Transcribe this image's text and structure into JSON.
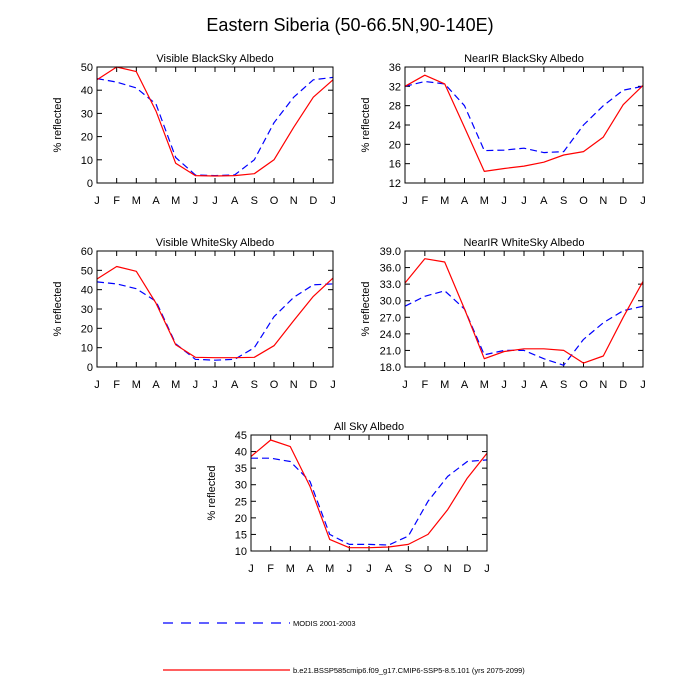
{
  "figure": {
    "title": "Eastern Siberia (50-66.5N,90-140E)"
  },
  "colors": {
    "modis": "#0000ff",
    "model": "#ff0000",
    "axis": "#000000"
  },
  "legend": {
    "modis_label": "MODIS 2001-2003",
    "model_label": "b.e21.BSSP585cmip6.f09_g17.CMIP6-SSP5-8.5.101 (yrs 2075-2099)"
  },
  "chart_data": [
    {
      "type": "line",
      "title": "Visible BlackSky Albedo",
      "xlabel": "",
      "ylabel": "% reflected",
      "x": [
        "J",
        "F",
        "M",
        "A",
        "M",
        "J",
        "J",
        "A",
        "S",
        "O",
        "N",
        "D",
        "J"
      ],
      "ylim": [
        0,
        50
      ],
      "yticks": [
        "0",
        "10",
        "20",
        "30",
        "40",
        "50"
      ],
      "grid": false,
      "series": [
        {
          "name": "MODIS 2001-2003",
          "style": "dashed",
          "values": [
            45,
            43.5,
            41,
            34,
            11,
            3.5,
            3.2,
            3.5,
            10,
            26,
            37,
            44.5,
            45.5
          ]
        },
        {
          "name": "b.e21.BSSP585cmip6.f09_g17.CMIP6-SSP5-8.5.101 (yrs 2075-2099)",
          "style": "solid",
          "values": [
            44.5,
            50,
            48,
            31,
            8.5,
            3.2,
            3.0,
            3.2,
            4,
            10,
            24,
            37,
            44.5
          ]
        }
      ]
    },
    {
      "type": "line",
      "title": "NearIR BlackSky Albedo",
      "xlabel": "",
      "ylabel": "% reflected",
      "x": [
        "J",
        "F",
        "M",
        "A",
        "M",
        "J",
        "J",
        "A",
        "S",
        "O",
        "N",
        "D",
        "J"
      ],
      "ylim": [
        12,
        36
      ],
      "yticks": [
        "12",
        "16",
        "20",
        "24",
        "28",
        "32",
        "36"
      ],
      "grid": false,
      "series": [
        {
          "name": "MODIS 2001-2003",
          "style": "dashed",
          "values": [
            32,
            33,
            32.5,
            28,
            18.7,
            18.8,
            19.2,
            18.3,
            18.5,
            24,
            28,
            31.2,
            32
          ]
        },
        {
          "name": "b.e21.BSSP585cmip6.f09_g17.CMIP6-SSP5-8.5.101 (yrs 2075-2099)",
          "style": "solid",
          "values": [
            32,
            34.3,
            32.5,
            23.5,
            14.4,
            15,
            15.5,
            16.3,
            17.8,
            18.5,
            21.5,
            28.2,
            32.2
          ]
        }
      ]
    },
    {
      "type": "line",
      "title": "Visible WhiteSky Albedo",
      "xlabel": "",
      "ylabel": "% reflected",
      "x": [
        "J",
        "F",
        "M",
        "A",
        "M",
        "J",
        "J",
        "A",
        "S",
        "O",
        "N",
        "D",
        "J"
      ],
      "ylim": [
        0,
        60
      ],
      "yticks": [
        "0",
        "10",
        "20",
        "30",
        "40",
        "50",
        "60"
      ],
      "grid": false,
      "series": [
        {
          "name": "MODIS 2001-2003",
          "style": "dashed",
          "values": [
            44,
            43,
            40.5,
            34,
            12,
            4,
            3.5,
            4,
            10,
            26,
            36,
            42.5,
            43
          ]
        },
        {
          "name": "b.e21.BSSP585cmip6.f09_g17.CMIP6-SSP5-8.5.101 (yrs 2075-2099)",
          "style": "solid",
          "values": [
            45.5,
            52,
            49.5,
            33,
            11.5,
            5,
            4.8,
            4.8,
            5,
            11,
            24,
            36.5,
            46
          ]
        }
      ]
    },
    {
      "type": "line",
      "title": "NearIR WhiteSky Albedo",
      "xlabel": "",
      "ylabel": "% reflected",
      "x": [
        "J",
        "F",
        "M",
        "A",
        "M",
        "J",
        "J",
        "A",
        "S",
        "O",
        "N",
        "D",
        "J"
      ],
      "ylim": [
        18,
        39
      ],
      "yticks": [
        "18.0",
        "21.0",
        "24.0",
        "27.0",
        "30.0",
        "33.0",
        "36.0",
        "39.0"
      ],
      "grid": false,
      "series": [
        {
          "name": "MODIS 2001-2003",
          "style": "dashed",
          "values": [
            29,
            30.8,
            31.8,
            28.5,
            20.2,
            21,
            21,
            19.5,
            18.3,
            23,
            26,
            28.2,
            29
          ]
        },
        {
          "name": "b.e21.BSSP585cmip6.f09_g17.CMIP6-SSP5-8.5.101 (yrs 2075-2099)",
          "style": "solid",
          "values": [
            33.2,
            37.6,
            37,
            28.5,
            19.5,
            20.8,
            21.3,
            21.3,
            21,
            18.7,
            20,
            27,
            33.5
          ]
        }
      ]
    },
    {
      "type": "line",
      "title": "All Sky Albedo",
      "xlabel": "",
      "ylabel": "% reflected",
      "x": [
        "J",
        "F",
        "M",
        "A",
        "M",
        "J",
        "J",
        "A",
        "S",
        "O",
        "N",
        "D",
        "J"
      ],
      "ylim": [
        10,
        45
      ],
      "yticks": [
        "10",
        "15",
        "20",
        "25",
        "30",
        "35",
        "40",
        "45"
      ],
      "grid": false,
      "series": [
        {
          "name": "MODIS 2001-2003",
          "style": "dashed",
          "values": [
            38,
            38,
            37,
            31,
            15,
            12,
            12,
            11.8,
            14.5,
            25,
            32.5,
            37,
            37.5
          ]
        },
        {
          "name": "b.e21.BSSP585cmip6.f09_g17.CMIP6-SSP5-8.5.101 (yrs 2075-2099)",
          "style": "solid",
          "values": [
            38.5,
            43.5,
            41.5,
            29.5,
            13.5,
            11,
            11,
            11.2,
            12,
            15,
            22.5,
            32,
            39.5
          ]
        }
      ]
    }
  ]
}
